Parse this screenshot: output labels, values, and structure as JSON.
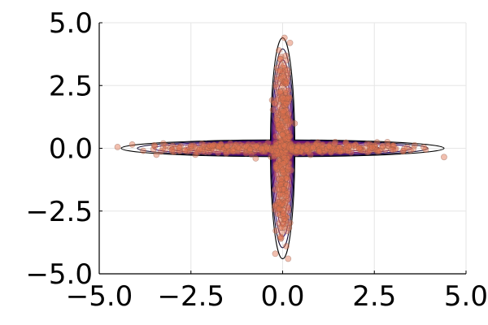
{
  "chart_data": {
    "type": "scatter",
    "title": "",
    "xlabel": "",
    "ylabel": "",
    "xlim": [
      -5.0,
      5.0
    ],
    "ylim": [
      -5.0,
      5.0
    ],
    "grid": true,
    "legend": "none",
    "x_ticks": [
      -5.0,
      -2.5,
      0.0,
      2.5,
      5.0
    ],
    "y_ticks": [
      -5.0,
      -2.5,
      0.0,
      2.5,
      5.0
    ],
    "x_tick_labels": [
      "−5.0",
      "−2.5",
      "0.0",
      "2.5",
      "5.0"
    ],
    "y_tick_labels": [
      "−5.0",
      "−2.5",
      "0.0",
      "2.5",
      "5.0"
    ],
    "point_color": "#e0724e",
    "point_edge_color": "#8a5a4a",
    "contour_colors": [
      "#000000",
      "#140b34",
      "#3b0f70",
      "#5c126e",
      "#7e1d6e"
    ],
    "series": [
      {
        "kind": "scatter",
        "description_points": [
          [
            -4.5,
            0.05
          ],
          [
            -4.1,
            0.15
          ],
          [
            -3.8,
            -0.1
          ],
          [
            -3.5,
            0.12
          ],
          [
            -3.2,
            -0.05
          ],
          [
            -3.0,
            0.1
          ],
          [
            -2.8,
            -0.12
          ],
          [
            -2.5,
            0.05
          ],
          [
            -2.2,
            0.18
          ],
          [
            -2.0,
            -0.15
          ],
          [
            -1.8,
            0.08
          ],
          [
            -1.5,
            -0.05
          ],
          [
            -1.3,
            0.12
          ],
          [
            -1.0,
            -0.1
          ],
          [
            -0.8,
            0.06
          ],
          [
            -0.5,
            0.1
          ],
          [
            -0.3,
            -0.08
          ],
          [
            0.3,
            0.08
          ],
          [
            0.5,
            -0.12
          ],
          [
            0.8,
            0.1
          ],
          [
            1.0,
            -0.05
          ],
          [
            1.3,
            0.15
          ],
          [
            1.5,
            -0.1
          ],
          [
            1.8,
            0.05
          ],
          [
            2.0,
            0.12
          ],
          [
            2.3,
            -0.15
          ],
          [
            2.5,
            0.08
          ],
          [
            2.8,
            -0.06
          ],
          [
            3.0,
            0.1
          ],
          [
            3.3,
            -0.1
          ],
          [
            3.6,
            0.12
          ],
          [
            3.9,
            -0.05
          ],
          [
            4.4,
            -0.35
          ],
          [
            0.05,
            4.4
          ],
          [
            0.2,
            4.2
          ],
          [
            -0.1,
            3.9
          ],
          [
            0.1,
            3.5
          ],
          [
            -0.15,
            3.2
          ],
          [
            0.12,
            2.9
          ],
          [
            -0.05,
            2.6
          ],
          [
            0.15,
            2.3
          ],
          [
            -0.12,
            2.0
          ],
          [
            0.08,
            1.7
          ],
          [
            -0.1,
            1.4
          ],
          [
            0.1,
            1.1
          ],
          [
            -0.05,
            0.8
          ],
          [
            0.12,
            0.5
          ],
          [
            -0.08,
            0.3
          ],
          [
            0.1,
            -0.3
          ],
          [
            -0.12,
            -0.6
          ],
          [
            0.05,
            -0.9
          ],
          [
            -0.1,
            -1.2
          ],
          [
            0.15,
            -1.5
          ],
          [
            -0.05,
            -1.8
          ],
          [
            0.1,
            -2.1
          ],
          [
            -0.15,
            -2.4
          ],
          [
            0.08,
            -2.7
          ],
          [
            -0.1,
            -3.0
          ],
          [
            0.12,
            -3.3
          ],
          [
            -0.05,
            -3.6
          ],
          [
            0.1,
            -3.9
          ],
          [
            -0.2,
            -4.2
          ],
          [
            0.15,
            -4.4
          ]
        ]
      }
    ]
  }
}
